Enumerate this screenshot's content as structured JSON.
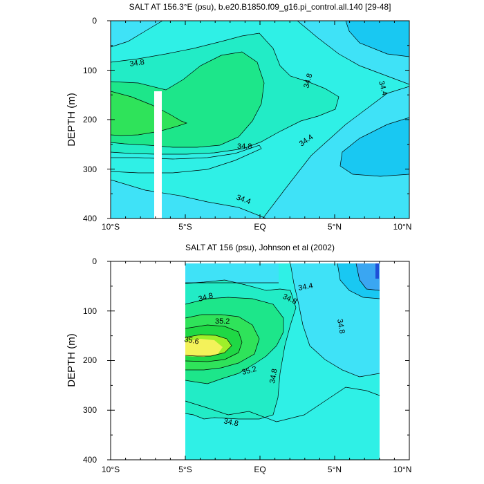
{
  "chart_data": [
    {
      "type": "contour",
      "title": "SALT AT 156.3°E (psu), b.e20.B1850.f09_g16.pi_control.all.140 [29-48]",
      "ylabel": "DEPTH (m)",
      "xlim": [
        -10,
        10
      ],
      "ylim": [
        400,
        0
      ],
      "x_tick_labels": [
        "10°S",
        "5°S",
        "EQ",
        "5°N",
        "10°N"
      ],
      "y_tick_labels": [
        "0",
        "100",
        "200",
        "300",
        "400"
      ],
      "contour_labels": [
        34.8,
        34.8,
        34.8,
        34.4,
        34.4,
        34.4
      ],
      "no_data_strip_x": [
        -7.3,
        -6.9
      ]
    },
    {
      "type": "contour",
      "title": "SALT AT 156 (psu), Johnson et al (2002)",
      "ylabel": "DEPTH (m)",
      "xlim": [
        -10,
        10
      ],
      "ylim": [
        400,
        0
      ],
      "data_xrange": [
        -5,
        8
      ],
      "x_tick_labels": [
        "10°S",
        "5°S",
        "EQ",
        "5°N",
        "10°N"
      ],
      "y_tick_labels": [
        "0",
        "100",
        "200",
        "300",
        "400"
      ],
      "contour_labels": [
        34.8,
        35.2,
        35.6,
        35.2,
        34.8,
        34.8,
        34.4,
        34.8,
        34.8
      ]
    }
  ],
  "colors": {
    "lt34_0": "#1e88e5",
    "b34_0": "#3aa6f2",
    "b34_2": "#19c8f2",
    "b34_4": "#3fe2f7",
    "b34_6": "#2ff0e6",
    "b34_8": "#22ecc6",
    "b35_0": "#1de68a",
    "b35_2": "#2fe35a",
    "b35_4": "#1fd845",
    "b35_6": "#9ef02a",
    "b35_8": "#f4f25a",
    "deep": "#1e4fd8"
  }
}
